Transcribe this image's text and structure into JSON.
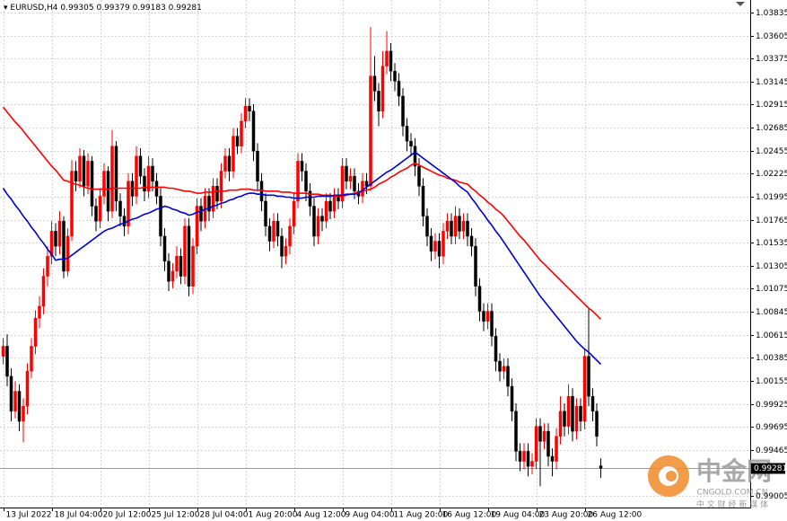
{
  "chart_data": {
    "type": "candlestick",
    "symbol": "EURUSD,H4",
    "up_color": "#ff0000",
    "down_color": "#000000",
    "grid": true,
    "ylim": [
      0.98888,
      1.03961
    ],
    "yticks": [
      1.03835,
      1.03605,
      1.03375,
      1.03145,
      1.02915,
      1.02685,
      1.02455,
      1.02225,
      1.01995,
      1.01765,
      1.01535,
      1.01305,
      1.01075,
      1.00845,
      1.00615,
      1.00385,
      1.00155,
      0.99925,
      0.99695,
      0.99465,
      0.99005
    ],
    "categories": [
      "13 Jul 2022",
      null,
      null,
      null,
      null,
      null,
      null,
      null,
      null,
      null,
      null,
      null,
      "18 Jul 04:00",
      null,
      null,
      null,
      null,
      null,
      null,
      null,
      null,
      null,
      null,
      null,
      "20 Jul 12:00",
      null,
      null,
      null,
      null,
      null,
      null,
      null,
      null,
      null,
      null,
      null,
      "25 Jul 12:00",
      null,
      null,
      null,
      null,
      null,
      null,
      null,
      null,
      null,
      null,
      null,
      "28 Jul 04:00",
      null,
      null,
      null,
      null,
      null,
      null,
      null,
      null,
      null,
      null,
      null,
      "1 Aug 20:00",
      null,
      null,
      null,
      null,
      null,
      null,
      null,
      null,
      null,
      null,
      null,
      "4 Aug 12:00",
      null,
      null,
      null,
      null,
      null,
      null,
      null,
      null,
      null,
      null,
      null,
      "9 Aug 04:00",
      null,
      null,
      null,
      null,
      null,
      null,
      null,
      null,
      null,
      null,
      null,
      "11 Aug 20:00",
      null,
      null,
      null,
      null,
      null,
      null,
      null,
      null,
      null,
      null,
      null,
      "16 Aug 12:00",
      null,
      null,
      null,
      null,
      null,
      null,
      null,
      null,
      null,
      null,
      null,
      "19 Aug 04:00",
      null,
      null,
      null,
      null,
      null,
      null,
      null,
      null,
      null,
      null,
      null,
      "23 Aug 20:00",
      null,
      null,
      null,
      null,
      null,
      null,
      null,
      null,
      null,
      null,
      null,
      "26 Aug 12:00",
      null,
      null,
      null,
      null
    ],
    "open": [
      1.004,
      1.005,
      1.002,
      0.9985,
      1.0005,
      0.9975,
      0.999,
      1.0025,
      1.005,
      1.0078,
      1.009,
      1.012,
      1.014,
      1.0165,
      1.015,
      1.0175,
      1.0125,
      1.016,
      1.0225,
      1.0215,
      1.024,
      1.021,
      1.0235,
      1.019,
      1.0175,
      1.02,
      1.0225,
      1.0185,
      1.025,
      1.0195,
      1.018,
      1.017,
      1.0215,
      1.02,
      1.024,
      1.022,
      1.0205,
      1.023,
      1.0215,
      1.02,
      1.016,
      1.0135,
      1.0115,
      1.0125,
      1.014,
      1.012,
      1.017,
      1.011,
      1.015,
      1.019,
      1.0175,
      1.02,
      1.0185,
      1.021,
      1.0195,
      1.0225,
      1.024,
      1.0225,
      1.026,
      1.025,
      1.0275,
      1.029,
      1.0285,
      1.0245,
      1.0215,
      1.0195,
      1.017,
      1.0155,
      1.0175,
      1.016,
      1.014,
      1.015,
      1.017,
      1.0195,
      1.0235,
      1.0225,
      1.0205,
      1.019,
      1.016,
      1.018,
      1.0175,
      1.0195,
      1.0185,
      1.02,
      1.0195,
      1.023,
      1.0215,
      1.022,
      1.0205,
      1.02,
      1.0215,
      1.021,
      1.032,
      1.0305,
      1.0285,
      1.033,
      1.0345,
      1.0325,
      1.0315,
      1.03,
      1.027,
      1.0255,
      1.025,
      1.023,
      1.021,
      1.018,
      1.016,
      1.0145,
      1.0155,
      1.014,
      1.0165,
      1.0175,
      1.016,
      1.018,
      1.0165,
      1.0175,
      1.016,
      1.015,
      1.011,
      1.0085,
      1.0075,
      1.0085,
      1.006,
      1.0035,
      1.0025,
      1.003,
      1.001,
      0.9985,
      0.9945,
      0.9935,
      0.9945,
      0.993,
      0.9935,
      0.997,
      0.9955,
      0.9965,
      0.994,
      0.9935,
      0.996,
      0.9985,
      0.997,
      1.0,
      0.9965,
      0.999,
      0.9975,
      1.004,
      1.0,
      0.9985,
      0.99305
    ],
    "high": [
      1.0058,
      1.0062,
      1.0028,
      1.0015,
      1.0012,
      0.9998,
      1.0033,
      1.0058,
      1.0086,
      1.01,
      1.0128,
      1.015,
      1.0175,
      1.0173,
      1.0185,
      1.018,
      1.0168,
      1.0236,
      1.0235,
      1.0248,
      1.0246,
      1.0243,
      1.024,
      1.0198,
      1.0208,
      1.0233,
      1.023,
      1.0266,
      1.0255,
      1.0203,
      1.0188,
      1.0223,
      1.0223,
      1.025,
      1.0248,
      1.0228,
      1.024,
      1.0238,
      1.0223,
      1.0208,
      1.0168,
      1.0143,
      1.0133,
      1.015,
      1.0148,
      1.0178,
      1.0178,
      1.0158,
      1.0198,
      1.0198,
      1.0208,
      1.0208,
      1.0218,
      1.0218,
      1.0233,
      1.0248,
      1.0248,
      1.0268,
      1.0268,
      1.0283,
      1.0298,
      1.0298,
      1.0292,
      1.0253,
      1.0223,
      1.0203,
      1.0178,
      1.0183,
      1.0183,
      1.0168,
      1.0158,
      1.0178,
      1.0203,
      1.0243,
      1.0243,
      1.0233,
      1.0213,
      1.0198,
      1.0188,
      1.0188,
      1.0203,
      1.0203,
      1.0208,
      1.0208,
      1.0238,
      1.0238,
      1.0228,
      1.0228,
      1.0213,
      1.0223,
      1.0223,
      1.0369,
      1.034,
      1.0313,
      1.0345,
      1.0365,
      1.0353,
      1.0333,
      1.0323,
      1.0308,
      1.0278,
      1.0263,
      1.0258,
      1.0238,
      1.0218,
      1.0188,
      1.0168,
      1.0163,
      1.0163,
      1.0173,
      1.0183,
      1.0183,
      1.019,
      1.0188,
      1.0183,
      1.0183,
      1.0168,
      1.0158,
      1.0118,
      1.0093,
      1.0093,
      1.0093,
      1.0068,
      1.0043,
      1.0038,
      1.0038,
      1.0018,
      0.9993,
      0.9953,
      0.9953,
      0.9953,
      0.9943,
      0.9978,
      0.9978,
      0.9973,
      0.9973,
      0.9948,
      0.9968,
      1.0,
      0.9993,
      1.0012,
      1.0008,
      0.9998,
      0.9998,
      1.0048,
      1.0087,
      1.0008,
      0.9993,
      0.99379
    ],
    "low": [
      1.0032,
      1.001,
      0.9975,
      0.9978,
      0.9965,
      0.9954,
      0.9982,
      1.0018,
      1.0042,
      1.0068,
      1.0082,
      1.011,
      1.0132,
      1.014,
      1.0142,
      1.0118,
      1.012,
      1.0155,
      1.0205,
      1.0208,
      1.02,
      1.0202,
      1.018,
      1.0165,
      1.0168,
      1.0192,
      1.0175,
      1.0178,
      1.0185,
      1.017,
      1.016,
      1.0162,
      1.019,
      1.0192,
      1.0212,
      1.0195,
      1.0198,
      1.0205,
      1.0192,
      1.015,
      1.0125,
      1.0105,
      1.0108,
      1.0118,
      1.0112,
      1.0112,
      1.01,
      1.0102,
      1.0142,
      1.0165,
      1.0168,
      1.0175,
      1.0178,
      1.0187,
      1.0188,
      1.0218,
      1.0215,
      1.0218,
      1.0242,
      1.0243,
      1.0268,
      1.0275,
      1.0235,
      1.0205,
      1.0185,
      1.016,
      1.0145,
      1.0148,
      1.015,
      1.0128,
      1.0132,
      1.0142,
      1.0162,
      1.0188,
      1.0215,
      1.0195,
      1.018,
      1.015,
      1.0152,
      1.0165,
      1.0168,
      1.0177,
      1.0178,
      1.0187,
      1.0188,
      1.0207,
      1.0207,
      1.0197,
      1.0192,
      1.0193,
      1.0202,
      1.0205,
      1.0295,
      1.027,
      1.0278,
      1.0322,
      1.0315,
      1.0305,
      1.029,
      1.026,
      1.0245,
      1.024,
      1.022,
      1.02,
      1.017,
      1.015,
      1.0135,
      1.0137,
      1.0128,
      1.0132,
      1.0157,
      1.0152,
      1.0152,
      1.0157,
      1.0157,
      1.015,
      1.014,
      1.01,
      1.0075,
      1.0065,
      1.0067,
      1.005,
      1.0025,
      1.0015,
      1.0017,
      1.0,
      0.9975,
      0.9935,
      0.9925,
      0.9927,
      0.992,
      0.9922,
      0.9927,
      0.991,
      0.9947,
      0.993,
      0.992,
      0.9927,
      0.9952,
      0.996,
      0.9962,
      0.9955,
      0.9957,
      0.9965,
      0.9967,
      0.999,
      0.9975,
      0.995,
      0.99183
    ],
    "close": [
      1.005,
      1.002,
      0.9985,
      1.0005,
      0.9975,
      0.999,
      1.0025,
      1.005,
      1.0078,
      1.009,
      1.012,
      1.014,
      1.0165,
      1.015,
      1.0175,
      1.0125,
      1.016,
      1.0225,
      1.0215,
      1.024,
      1.021,
      1.0235,
      1.019,
      1.0175,
      1.02,
      1.0225,
      1.0185,
      1.025,
      1.0195,
      1.018,
      1.017,
      1.0215,
      1.02,
      1.024,
      1.022,
      1.0205,
      1.023,
      1.0215,
      1.02,
      1.016,
      1.0135,
      1.0115,
      1.0125,
      1.014,
      1.012,
      1.017,
      1.011,
      1.015,
      1.019,
      1.0175,
      1.02,
      1.0185,
      1.021,
      1.0195,
      1.0225,
      1.024,
      1.0225,
      1.026,
      1.025,
      1.0275,
      1.029,
      1.0285,
      1.0245,
      1.0215,
      1.0195,
      1.017,
      1.0155,
      1.0175,
      1.016,
      1.014,
      1.015,
      1.017,
      1.0195,
      1.0235,
      1.0225,
      1.0205,
      1.019,
      1.016,
      1.018,
      1.0175,
      1.0195,
      1.0185,
      1.02,
      1.0195,
      1.023,
      1.0215,
      1.022,
      1.0205,
      1.02,
      1.0215,
      1.021,
      1.032,
      1.0305,
      1.0285,
      1.033,
      1.0345,
      1.0325,
      1.0315,
      1.03,
      1.027,
      1.0255,
      1.025,
      1.023,
      1.021,
      1.018,
      1.016,
      1.0145,
      1.0155,
      1.014,
      1.0165,
      1.0175,
      1.016,
      1.018,
      1.0165,
      1.0175,
      1.016,
      1.015,
      1.011,
      1.0085,
      1.0075,
      1.0085,
      1.006,
      1.0035,
      1.0025,
      1.003,
      1.001,
      0.9985,
      0.9945,
      0.9935,
      0.9945,
      0.993,
      0.9935,
      0.997,
      0.9955,
      0.9965,
      0.994,
      0.9935,
      0.996,
      0.9985,
      0.997,
      1.0,
      0.9965,
      0.999,
      0.9975,
      1.004,
      1.0,
      0.9985,
      0.996,
      0.99281
    ],
    "moving_averages": [
      {
        "color": "#ff0000",
        "values": [
          1.0289,
          1.0284,
          1.0279,
          1.0274,
          1.027,
          1.0265,
          1.026,
          1.0255,
          1.025,
          1.0245,
          1.024,
          1.0235,
          1.023,
          1.0226,
          1.0221,
          1.0216,
          1.0215,
          1.0213,
          1.0212,
          1.0211,
          1.0209,
          1.0208,
          1.0207,
          1.0207,
          1.0207,
          1.0207,
          1.0207,
          1.0208,
          1.0208,
          1.0208,
          1.0208,
          1.0208,
          1.0208,
          1.0208,
          1.0208,
          1.0209,
          1.0209,
          1.0209,
          1.0209,
          1.0209,
          1.0209,
          1.0208,
          1.0208,
          1.0207,
          1.0206,
          1.0205,
          1.0205,
          1.0204,
          1.0203,
          1.0203,
          1.0204,
          1.0204,
          1.0204,
          1.0205,
          1.0205,
          1.0205,
          1.0206,
          1.0206,
          1.0206,
          1.0207,
          1.0207,
          1.0207,
          1.0206,
          1.0206,
          1.0206,
          1.0205,
          1.0205,
          1.0205,
          1.0205,
          1.0204,
          1.0204,
          1.0204,
          1.0203,
          1.0203,
          1.0203,
          1.0203,
          1.0202,
          1.0202,
          1.0202,
          1.0201,
          1.0201,
          1.0201,
          1.02,
          1.02,
          1.02,
          1.0201,
          1.0202,
          1.0203,
          1.0204,
          1.0205,
          1.0206,
          1.0207,
          1.0209,
          1.0212,
          1.0214,
          1.0216,
          1.0219,
          1.0221,
          1.0224,
          1.0226,
          1.0228,
          1.0231,
          1.0233,
          1.0231,
          1.0229,
          1.0227,
          1.0225,
          1.0223,
          1.0221,
          1.022,
          1.0218,
          1.0217,
          1.0216,
          1.0214,
          1.0213,
          1.0212,
          1.0208,
          1.0205,
          1.0201,
          1.0198,
          1.0194,
          1.0191,
          1.0187,
          1.0184,
          1.018,
          1.0175,
          1.017,
          1.0165,
          1.016,
          1.0156,
          1.0151,
          1.0146,
          1.0141,
          1.0136,
          1.0132,
          1.0128,
          1.0124,
          1.012,
          1.0116,
          1.0112,
          1.0108,
          1.0104,
          1.01,
          1.0096,
          1.0092,
          1.0088,
          1.0085,
          1.0081,
          1.0077
        ]
      },
      {
        "color": "#0000cc",
        "values": [
          1.0208,
          1.0202,
          1.0197,
          1.0191,
          1.0186,
          1.018,
          1.0175,
          1.0169,
          1.0164,
          1.0158,
          1.0153,
          1.0147,
          1.0142,
          1.0136,
          1.0137,
          1.0137,
          1.0138,
          1.0141,
          1.0144,
          1.0147,
          1.015,
          1.0153,
          1.0156,
          1.0159,
          1.0162,
          1.0165,
          1.0167,
          1.0168,
          1.017,
          1.0172,
          1.0173,
          1.0175,
          1.0177,
          1.0178,
          1.018,
          1.0182,
          1.0183,
          1.0185,
          1.0187,
          1.0188,
          1.019,
          1.0189,
          1.0187,
          1.0186,
          1.0184,
          1.0183,
          1.0181,
          1.0182,
          1.0184,
          1.0185,
          1.0187,
          1.0188,
          1.019,
          1.0191,
          1.0193,
          1.0194,
          1.0196,
          1.0197,
          1.0199,
          1.02,
          1.0202,
          1.0203,
          1.0203,
          1.0202,
          1.0202,
          1.0201,
          1.0201,
          1.0201,
          1.02,
          1.02,
          1.0199,
          1.0199,
          1.0198,
          1.0198,
          1.0198,
          1.0199,
          1.0199,
          1.0199,
          1.02,
          1.02,
          1.02,
          1.02,
          1.0201,
          1.0201,
          1.0201,
          1.0202,
          1.0202,
          1.0202,
          1.0203,
          1.0206,
          1.0209,
          1.0212,
          1.0215,
          1.0218,
          1.0221,
          1.0224,
          1.0226,
          1.0229,
          1.0232,
          1.0235,
          1.0238,
          1.0241,
          1.0244,
          1.0241,
          1.0238,
          1.0235,
          1.0232,
          1.0229,
          1.0226,
          1.0223,
          1.022,
          1.0217,
          1.0214,
          1.021,
          1.0207,
          1.0204,
          1.0198,
          1.0193,
          1.0187,
          1.0182,
          1.0176,
          1.0171,
          1.0165,
          1.016,
          1.0154,
          1.0148,
          1.0142,
          1.0136,
          1.013,
          1.0124,
          1.0118,
          1.0112,
          1.0106,
          1.01,
          1.0095,
          1.009,
          1.0085,
          1.008,
          1.0075,
          1.007,
          1.0065,
          1.006,
          1.0055,
          1.0051,
          1.0047,
          1.0044,
          1.004,
          1.0036,
          1.0032
        ]
      }
    ],
    "watermark": {
      "logo": "中金网",
      "site": "CNGOLD.COM.CN",
      "slogan": "中 文 财 经 新 媒 体"
    }
  }
}
